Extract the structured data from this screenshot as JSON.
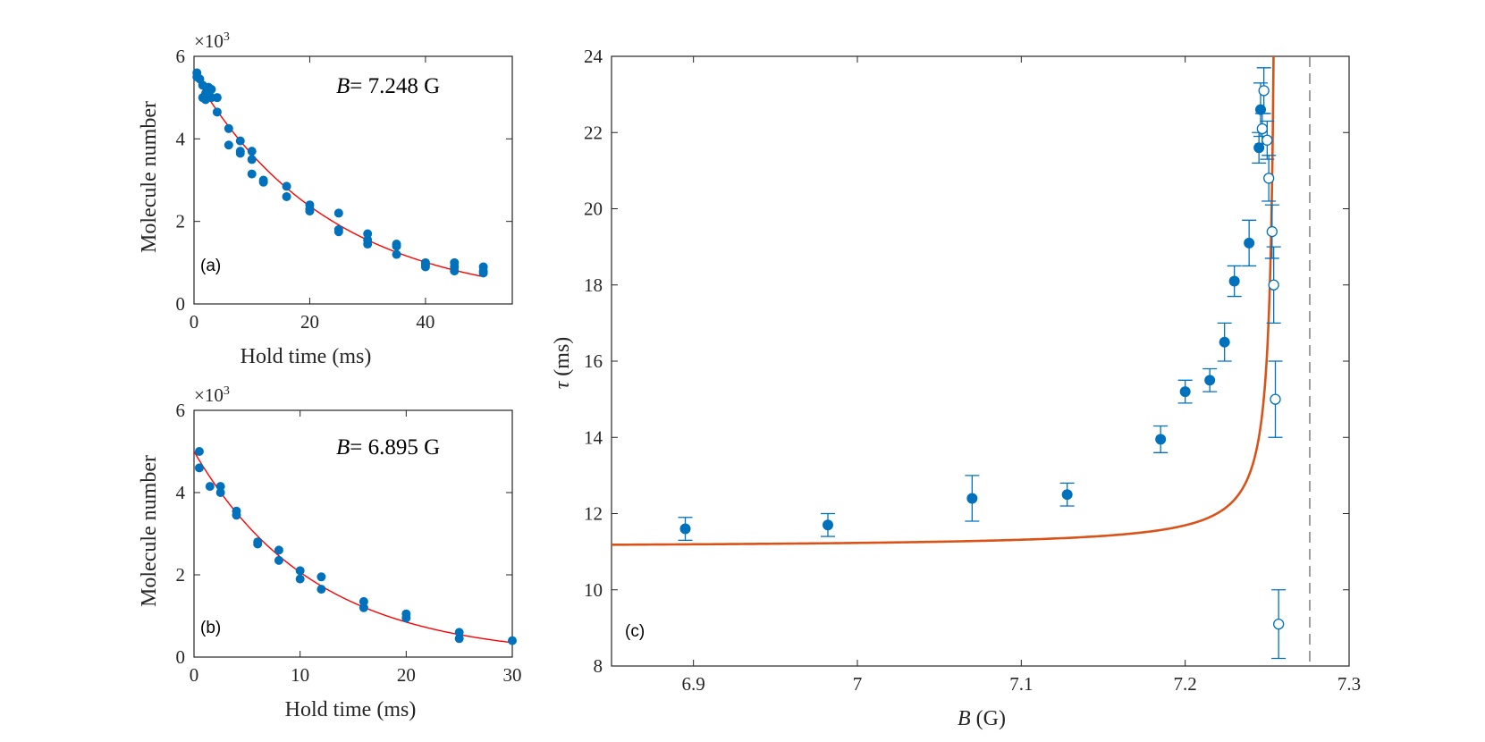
{
  "colors": {
    "point": "#0072BD",
    "fit_ab": "#FF0000",
    "fit_c": "#D95319",
    "dashed": "#7F7F7F",
    "axis": "#262626"
  },
  "chart_data": [
    {
      "id": "a",
      "type": "scatter",
      "panel_label": "(a)",
      "annotation": {
        "symbol": "B",
        "text": "= 7.248 G"
      },
      "xlabel": "Hold time (ms)",
      "ylabel": "Molecule number",
      "y_multiplier": "×10",
      "y_multiplier_exp": "3",
      "xlim": [
        0,
        55
      ],
      "ylim": [
        0,
        6
      ],
      "xticks": [
        0,
        20,
        40
      ],
      "yticks": [
        0,
        2,
        4,
        6
      ],
      "fit": {
        "type": "exponential",
        "A": 5.55,
        "tau": 23.5,
        "x_range": [
          0,
          50
        ]
      },
      "points": [
        [
          0.5,
          5.6
        ],
        [
          0.5,
          5.5
        ],
        [
          1,
          5.45
        ],
        [
          1.5,
          5.3
        ],
        [
          1.5,
          5.0
        ],
        [
          2,
          4.95
        ],
        [
          2,
          5.1
        ],
        [
          2.5,
          5.25
        ],
        [
          3,
          5.0
        ],
        [
          3,
          5.2
        ],
        [
          4,
          5.0
        ],
        [
          4,
          4.65
        ],
        [
          6,
          4.25
        ],
        [
          6,
          3.85
        ],
        [
          8,
          3.95
        ],
        [
          8,
          3.7
        ],
        [
          8,
          3.65
        ],
        [
          10,
          3.7
        ],
        [
          10,
          3.5
        ],
        [
          10,
          3.15
        ],
        [
          12,
          3.0
        ],
        [
          12,
          2.95
        ],
        [
          16,
          2.85
        ],
        [
          16,
          2.6
        ],
        [
          20,
          2.4
        ],
        [
          20,
          2.3
        ],
        [
          20,
          2.25
        ],
        [
          25,
          2.2
        ],
        [
          25,
          1.8
        ],
        [
          25,
          1.75
        ],
        [
          30,
          1.7
        ],
        [
          30,
          1.55
        ],
        [
          30,
          1.45
        ],
        [
          35,
          1.45
        ],
        [
          35,
          1.4
        ],
        [
          35,
          1.2
        ],
        [
          40,
          1.0
        ],
        [
          40,
          0.95
        ],
        [
          40,
          0.9
        ],
        [
          45,
          1.0
        ],
        [
          45,
          0.9
        ],
        [
          45,
          0.8
        ],
        [
          50,
          0.9
        ],
        [
          50,
          0.8
        ],
        [
          50,
          0.75
        ]
      ]
    },
    {
      "id": "b",
      "type": "scatter",
      "panel_label": "(b)",
      "annotation": {
        "symbol": "B",
        "text": "= 6.895 G"
      },
      "xlabel": "Hold time (ms)",
      "ylabel": "Molecule number",
      "y_multiplier": "×10",
      "y_multiplier_exp": "3",
      "xlim": [
        0,
        30
      ],
      "ylim": [
        0,
        6
      ],
      "xticks": [
        0,
        10,
        20,
        30
      ],
      "yticks": [
        0,
        2,
        4,
        6
      ],
      "fit": {
        "type": "exponential",
        "A": 5.0,
        "tau": 11.3,
        "x_range": [
          0,
          30
        ]
      },
      "points": [
        [
          0.5,
          5.0
        ],
        [
          0.5,
          4.6
        ],
        [
          1.5,
          4.15
        ],
        [
          2.5,
          4.15
        ],
        [
          2.5,
          4.0
        ],
        [
          4,
          3.55
        ],
        [
          4,
          3.45
        ],
        [
          6,
          2.8
        ],
        [
          6,
          2.75
        ],
        [
          8,
          2.6
        ],
        [
          8,
          2.35
        ],
        [
          10,
          2.1
        ],
        [
          10,
          1.9
        ],
        [
          12,
          1.95
        ],
        [
          12,
          1.65
        ],
        [
          16,
          1.35
        ],
        [
          16,
          1.2
        ],
        [
          20,
          1.05
        ],
        [
          20,
          0.95
        ],
        [
          25,
          0.6
        ],
        [
          25,
          0.45
        ],
        [
          30,
          0.4
        ]
      ]
    },
    {
      "id": "c",
      "type": "scatter",
      "panel_label": "(c)",
      "xlabel_symbol": "B",
      "xlabel_unit": " (G)",
      "ylabel_symbol": "τ",
      "ylabel_unit": " (ms)",
      "xlim": [
        6.85,
        7.3
      ],
      "ylim": [
        8,
        24
      ],
      "xticks": [
        6.9,
        7,
        7.1,
        7.2,
        7.3
      ],
      "xtick_labels": [
        "6.9",
        "7",
        "7.1",
        "7.2",
        "7.3"
      ],
      "yticks": [
        8,
        10,
        12,
        14,
        16,
        18,
        20,
        22,
        24
      ],
      "fit": {
        "type": "divergent",
        "tau0": 11.1,
        "k": 0.0335,
        "B0": 7.2565,
        "x_range": [
          6.85,
          7.2552
        ]
      },
      "dashed_line_x": 7.276,
      "series": [
        {
          "name": "filled",
          "marker": "filled-circle",
          "points": [
            {
              "x": 6.895,
              "y": 11.6,
              "err": 0.3
            },
            {
              "x": 6.982,
              "y": 11.7,
              "err": 0.3
            },
            {
              "x": 7.07,
              "y": 12.4,
              "err": 0.6
            },
            {
              "x": 7.128,
              "y": 12.5,
              "err": 0.3
            },
            {
              "x": 7.185,
              "y": 13.95,
              "err": 0.35
            },
            {
              "x": 7.2,
              "y": 15.2,
              "err": 0.3
            },
            {
              "x": 7.215,
              "y": 15.5,
              "err": 0.3
            },
            {
              "x": 7.224,
              "y": 16.5,
              "err": 0.5
            },
            {
              "x": 7.23,
              "y": 18.1,
              "err": 0.4
            },
            {
              "x": 7.239,
              "y": 19.1,
              "err": 0.6
            },
            {
              "x": 7.245,
              "y": 21.6,
              "err": 0.4
            },
            {
              "x": 7.246,
              "y": 22.6,
              "err": 0.7
            }
          ]
        },
        {
          "name": "open",
          "marker": "open-circle",
          "points": [
            {
              "x": 7.247,
              "y": 22.1,
              "err": 0.4
            },
            {
              "x": 7.248,
              "y": 23.1,
              "err": 0.6
            },
            {
              "x": 7.25,
              "y": 21.8,
              "err": 0.5
            },
            {
              "x": 7.251,
              "y": 20.8,
              "err": 0.6
            },
            {
              "x": 7.253,
              "y": 19.4,
              "err": 0.7
            },
            {
              "x": 7.254,
              "y": 18.0,
              "err": 1.0
            },
            {
              "x": 7.255,
              "y": 15.0,
              "err": 1.0
            },
            {
              "x": 7.257,
              "y": 9.1,
              "err": 0.9
            }
          ]
        }
      ]
    }
  ]
}
